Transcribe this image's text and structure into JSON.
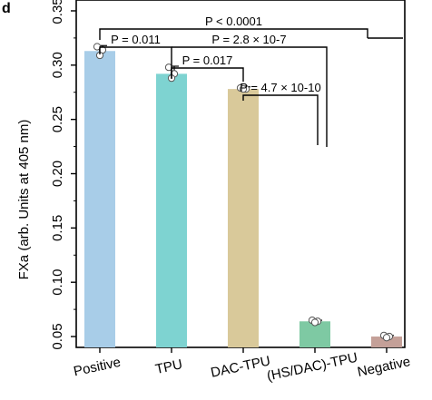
{
  "panel_label": "d",
  "chart_data": {
    "type": "bar",
    "ylabel": "FXa (arb. Units at 405 nm)",
    "xlabel": "",
    "ylim": [
      0.04,
      0.36
    ],
    "yticks": [
      0.05,
      0.1,
      0.15,
      0.2,
      0.25,
      0.3,
      0.35
    ],
    "ytick_labels": [
      "0.05",
      "0.10",
      "0.15",
      "0.20",
      "0.25",
      "0.30",
      "0.35"
    ],
    "categories": [
      "Positive",
      "TPU",
      "DAC-TPU",
      "(HS/DAC)-TPU",
      "Negative"
    ],
    "values": [
      0.313,
      0.292,
      0.278,
      0.064,
      0.05
    ],
    "errors": [
      0.005,
      0.007,
      0.002,
      0.001,
      0.001
    ],
    "colors": [
      "#a8cde8",
      "#7ed3d1",
      "#d9c99a",
      "#7ec9a3",
      "#c4a098"
    ],
    "points": [
      [
        0.317,
        0.314,
        0.309
      ],
      [
        0.298,
        0.292,
        0.288
      ],
      [
        0.279,
        0.278,
        0.278
      ],
      [
        0.065,
        0.064,
        0.063
      ],
      [
        0.051,
        0.05,
        0.049
      ]
    ],
    "annotations": [
      {
        "text": "P < 0.0001",
        "from": 0,
        "to": 3
      },
      {
        "text": "P = 0.011",
        "from": 0,
        "to": 1
      },
      {
        "text": "P = 2.8 × 10-7",
        "from": 1,
        "to": 3
      },
      {
        "text": "P = 0.017",
        "from": 1,
        "to": 2
      },
      {
        "text": "P = 4.7 × 10-10",
        "from": 2,
        "to": 3
      }
    ]
  }
}
